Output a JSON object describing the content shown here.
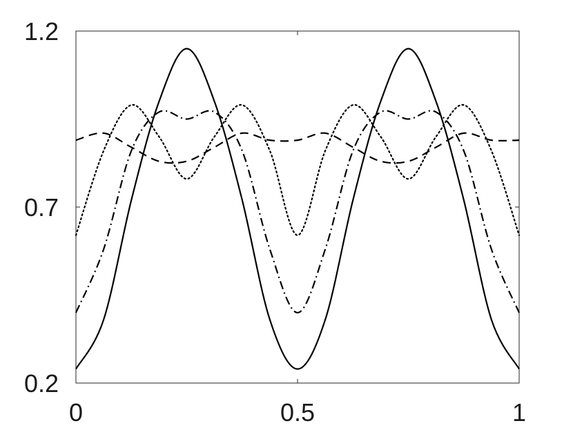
{
  "chart_data": {
    "type": "line",
    "title": "",
    "xlabel": "",
    "ylabel": "",
    "xlim": [
      0,
      1
    ],
    "ylim": [
      0.2,
      1.2
    ],
    "grid": false,
    "legend": "none",
    "x_ticks": [
      0,
      0.5,
      1
    ],
    "x_tick_labels": [
      "0",
      "0.5",
      "1"
    ],
    "y_ticks": [
      0.2,
      0.7,
      1.2
    ],
    "y_tick_labels": [
      "0.2",
      "0.7",
      "1.2"
    ],
    "x": [
      0,
      0.0625,
      0.125,
      0.1875,
      0.25,
      0.3125,
      0.375,
      0.4375,
      0.5,
      0.5625,
      0.625,
      0.6875,
      0.75,
      0.8125,
      0.875,
      0.9375,
      1
    ],
    "series": [
      {
        "style": "solid",
        "values": [
          0.24,
          0.38,
          0.72,
          1.0,
          1.15,
          1.0,
          0.72,
          0.38,
          0.24,
          0.38,
          0.72,
          1.0,
          1.15,
          1.0,
          0.72,
          0.38,
          0.24
        ]
      },
      {
        "style": "dotted",
        "values": [
          0.62,
          0.86,
          0.99,
          0.9,
          0.78,
          0.9,
          0.99,
          0.86,
          0.62,
          0.86,
          0.99,
          0.9,
          0.78,
          0.9,
          0.99,
          0.86,
          0.62
        ]
      },
      {
        "style": "dashdot",
        "values": [
          0.4,
          0.58,
          0.86,
          0.97,
          0.95,
          0.97,
          0.86,
          0.58,
          0.4,
          0.58,
          0.86,
          0.97,
          0.95,
          0.97,
          0.86,
          0.58,
          0.4
        ]
      },
      {
        "style": "dashed",
        "values": [
          0.89,
          0.91,
          0.87,
          0.83,
          0.83,
          0.87,
          0.91,
          0.89,
          0.89,
          0.91,
          0.87,
          0.83,
          0.83,
          0.87,
          0.91,
          0.89,
          0.89
        ]
      }
    ]
  }
}
